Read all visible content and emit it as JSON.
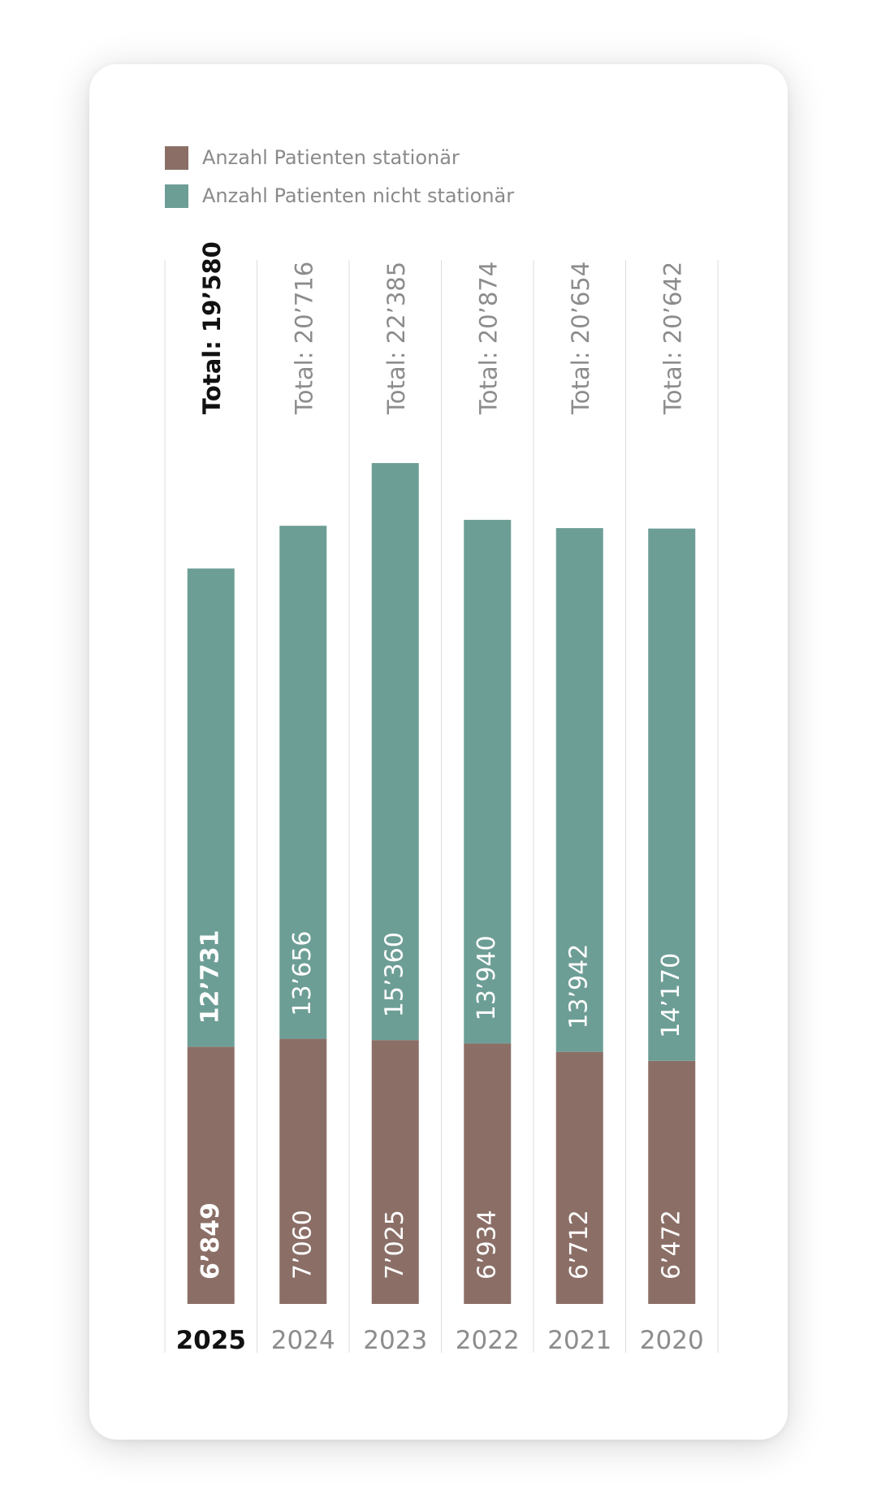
{
  "legend": {
    "items": [
      {
        "label": "Anzahl Patienten stationär",
        "color": "#8b6f67"
      },
      {
        "label": "Anzahl Patienten nicht stationär",
        "color": "#6d9e96"
      }
    ]
  },
  "chart_data": {
    "type": "bar",
    "stacked": true,
    "categories": [
      "2025",
      "2024",
      "2023",
      "2022",
      "2021",
      "2020"
    ],
    "highlighted_category": "2025",
    "series": [
      {
        "name": "Anzahl Patienten stationär",
        "color": "#8b6f67",
        "values": [
          6849,
          7060,
          7025,
          6934,
          6712,
          6472
        ],
        "labels": [
          "6’849",
          "7’060",
          "7’025",
          "6’934",
          "6’712",
          "6’472"
        ]
      },
      {
        "name": "Anzahl Patienten nicht stationär",
        "color": "#6d9e96",
        "values": [
          12731,
          13656,
          15360,
          13940,
          13942,
          14170
        ],
        "labels": [
          "12’731",
          "13’656",
          "15’360",
          "13’940",
          "13’942",
          "14’170"
        ]
      }
    ],
    "totals": [
      "Total: 19’580",
      "Total: 20’716",
      "Total: 22’385",
      "Total: 20’874",
      "Total: 20’654",
      "Total: 20’642"
    ],
    "ylim": [
      0,
      22385
    ],
    "grid": false,
    "legend_position": "top-left"
  }
}
